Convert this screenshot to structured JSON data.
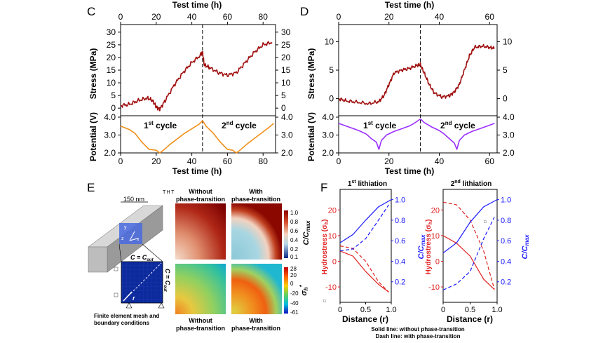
{
  "panel_c": {
    "letter": "C",
    "x_top": {
      "label": "Test time (h)",
      "ticks": [
        "0",
        "20",
        "40",
        "60",
        "80"
      ],
      "range": [
        0,
        87
      ]
    },
    "x_bottom": {
      "label": "Test time (h)",
      "ticks": [
        "0",
        "20",
        "40",
        "60",
        "80"
      ]
    },
    "stress_axis": {
      "label": "Stress (MPa)",
      "ticks": [
        "0",
        "5",
        "10",
        "15",
        "20",
        "25",
        "30"
      ],
      "range": [
        -3,
        33
      ]
    },
    "potential_axis": {
      "label": "Potential (V)",
      "ticks": [
        "2.0",
        "3.0",
        "4.0"
      ],
      "right_ticks": [
        "2.0",
        "3.0",
        "4.0"
      ],
      "range": [
        2.0,
        4.0
      ]
    },
    "cycle_divider_h": 46,
    "cycle1": {
      "main": "1",
      "sup": "st",
      "rest": " cycle"
    },
    "cycle2": {
      "main": "2",
      "sup": "nd",
      "rest": " cycle"
    },
    "stress_color": "#a01010",
    "potential_color": "#f0901a",
    "stress_curve": [
      [
        0,
        1
      ],
      [
        5,
        1.5
      ],
      [
        10,
        3
      ],
      [
        15,
        4
      ],
      [
        18,
        3
      ],
      [
        20,
        0.5
      ],
      [
        22,
        -0.5
      ],
      [
        25,
        3
      ],
      [
        30,
        9
      ],
      [
        35,
        14
      ],
      [
        40,
        18
      ],
      [
        45,
        21
      ],
      [
        46,
        22
      ],
      [
        47,
        17
      ],
      [
        50,
        16
      ],
      [
        55,
        14
      ],
      [
        60,
        13
      ],
      [
        65,
        14
      ],
      [
        70,
        18
      ],
      [
        75,
        22
      ],
      [
        80,
        25
      ],
      [
        85,
        26
      ]
    ],
    "potential_curve": [
      [
        0,
        3.5
      ],
      [
        5,
        3.3
      ],
      [
        8,
        3.1
      ],
      [
        12,
        2.6
      ],
      [
        16,
        2.2
      ],
      [
        20,
        2.15
      ],
      [
        22,
        2.0
      ],
      [
        24,
        2.15
      ],
      [
        28,
        2.5
      ],
      [
        32,
        2.8
      ],
      [
        36,
        3.1
      ],
      [
        40,
        3.35
      ],
      [
        44,
        3.6
      ],
      [
        46,
        3.8
      ],
      [
        48,
        3.5
      ],
      [
        52,
        3.1
      ],
      [
        56,
        2.6
      ],
      [
        60,
        2.2
      ],
      [
        63,
        2.15
      ],
      [
        65,
        2.0
      ],
      [
        67,
        2.15
      ],
      [
        71,
        2.5
      ],
      [
        75,
        2.8
      ],
      [
        79,
        3.1
      ],
      [
        83,
        3.4
      ],
      [
        86,
        3.65
      ]
    ]
  },
  "panel_d": {
    "letter": "D",
    "x_top": {
      "label": "Test time (h)",
      "ticks": [
        "0",
        "20",
        "40",
        "60"
      ],
      "range": [
        0,
        63
      ]
    },
    "x_bottom": {
      "label": "Test time (h)",
      "ticks": [
        "0",
        "20",
        "40",
        "60"
      ]
    },
    "stress_axis": {
      "label": "Stress (MPa)",
      "ticks": [
        "0",
        "5",
        "10"
      ],
      "right_ticks": [
        "0",
        "5",
        "10"
      ],
      "range": [
        -3,
        13
      ]
    },
    "potential_axis": {
      "label": "Potential (V)",
      "ticks": [
        "2.0",
        "3.0",
        "4.0"
      ],
      "right_ticks": [
        "2.0",
        "3.0",
        "4.0"
      ],
      "range": [
        2.0,
        4.0
      ]
    },
    "cycle_divider_h": 32.5,
    "cycle1": {
      "main": "1",
      "sup": "st",
      "rest": " cycle"
    },
    "cycle2": {
      "main": "2",
      "sup": "nd",
      "rest": " cycle"
    },
    "stress_color": "#a01010",
    "potential_color": "#9b30ff",
    "stress_curve": [
      [
        0,
        0
      ],
      [
        3,
        -0.4
      ],
      [
        7,
        -0.6
      ],
      [
        12,
        -0.9
      ],
      [
        16,
        -0.5
      ],
      [
        18,
        0.5
      ],
      [
        20,
        2.5
      ],
      [
        22,
        4.5
      ],
      [
        25,
        5
      ],
      [
        28,
        5.3
      ],
      [
        31,
        5.8
      ],
      [
        32.5,
        6
      ],
      [
        34,
        4.5
      ],
      [
        36,
        2.5
      ],
      [
        38,
        1
      ],
      [
        41,
        0.3
      ],
      [
        44,
        0.5
      ],
      [
        46,
        1.2
      ],
      [
        48,
        2.5
      ],
      [
        50,
        5
      ],
      [
        52,
        7.5
      ],
      [
        54,
        9
      ],
      [
        57,
        9.2
      ],
      [
        60,
        9
      ],
      [
        62,
        8.8
      ]
    ],
    "potential_curve": [
      [
        0,
        3.65
      ],
      [
        4,
        3.45
      ],
      [
        8,
        3.25
      ],
      [
        11,
        3.05
      ],
      [
        13,
        2.8
      ],
      [
        15,
        2.6
      ],
      [
        16,
        2.2
      ],
      [
        17,
        2.7
      ],
      [
        19,
        3.0
      ],
      [
        22,
        3.2
      ],
      [
        25,
        3.35
      ],
      [
        28,
        3.5
      ],
      [
        30,
        3.65
      ],
      [
        32.5,
        3.9
      ],
      [
        34,
        3.7
      ],
      [
        37,
        3.45
      ],
      [
        40,
        3.25
      ],
      [
        42,
        3.05
      ],
      [
        44,
        2.8
      ],
      [
        46,
        2.55
      ],
      [
        47,
        2.2
      ],
      [
        48,
        2.7
      ],
      [
        50,
        3.0
      ],
      [
        53,
        3.2
      ],
      [
        56,
        3.35
      ],
      [
        59,
        3.5
      ],
      [
        62,
        3.65
      ]
    ]
  },
  "panel_e": {
    "letter": "E",
    "scale_bar_text": "150 nm",
    "top_right_mark": "T H T",
    "axis_y": "y",
    "axis_x": "x",
    "axis_z": "z",
    "bc_top": "C = C",
    "bc_top_sub": "out",
    "bc_side": "C = C",
    "bc_side_sub": "out",
    "r_label": "r",
    "mesh_caption_1": "Finite element mesh and",
    "mesh_caption_2": "boundary conditions",
    "top_left_title_1": "Without",
    "top_left_title_2": "phase-transition",
    "top_right_title_1": "With",
    "top_right_title_2": "phase-transition",
    "bottom_left_title_1": "Without",
    "bottom_left_title_2": "phase-transition",
    "bottom_right_title_1": "With",
    "bottom_right_title_2": "phase-transition",
    "cbar1_ticks": [
      "1.0",
      "0.8",
      "0.6",
      "0.4",
      "0.2",
      "0.1"
    ],
    "cbar1_label_main": "C/C",
    "cbar1_label_sub": "max",
    "cbar2_ticks": [
      "28",
      "20",
      "0",
      "-20",
      "-40",
      "-61"
    ],
    "cbar2_label_main": "σ",
    "cbar2_label_sub": "h",
    "cbar2_label_sup": "*"
  },
  "panel_f": {
    "letter": "F",
    "left_title_main": "1",
    "left_title_sup": "st",
    "left_title_rest": " lithiation",
    "right_title_main": "2",
    "right_title_sup": "nd",
    "right_title_rest": " lithiation",
    "x_label": "Distance (r)",
    "x_ticks": [
      "0",
      "0.5",
      "1.0"
    ],
    "left_stress_ticks": [
      "-10",
      "0",
      "10",
      "20"
    ],
    "left_stress_range": [
      -16,
      28
    ],
    "right_stress_ticks": [
      "-10",
      "0",
      "10",
      "20"
    ],
    "right_stress_range": [
      -16,
      28
    ],
    "conc_ticks": [
      "0.2",
      "0.4",
      "0.6",
      "0.8",
      "1.0"
    ],
    "conc_range": [
      0.0,
      1.1
    ],
    "stress_label_main": "Hydrostress (σ",
    "stress_label_sub": "h",
    "stress_label_end": ")",
    "conc_label_main": "C/C",
    "conc_label_sub": "max",
    "stress_color": "#e02020",
    "conc_color": "#1a1aff",
    "stray_mark": "□",
    "legend_solid": "Solid line: without phase-transition",
    "legend_dash": "Dash line: with phase-transition",
    "left_curves": {
      "stress_solid": [
        [
          0,
          4
        ],
        [
          0.25,
          2
        ],
        [
          0.5,
          -4
        ],
        [
          0.75,
          -9
        ],
        [
          0.95,
          -12
        ]
      ],
      "stress_dash": [
        [
          0,
          6
        ],
        [
          0.25,
          5
        ],
        [
          0.5,
          0
        ],
        [
          0.75,
          -8
        ],
        [
          0.95,
          -12
        ]
      ],
      "conc_solid": [
        [
          0,
          0.58
        ],
        [
          0.25,
          0.66
        ],
        [
          0.5,
          0.8
        ],
        [
          0.75,
          0.93
        ],
        [
          1.0,
          1.0
        ]
      ],
      "conc_dash": [
        [
          0,
          0.5
        ],
        [
          0.25,
          0.52
        ],
        [
          0.5,
          0.62
        ],
        [
          0.75,
          0.8
        ],
        [
          0.95,
          0.95
        ]
      ]
    },
    "right_curves": {
      "stress_solid": [
        [
          0,
          10
        ],
        [
          0.25,
          7
        ],
        [
          0.5,
          2
        ],
        [
          0.75,
          -7
        ],
        [
          0.95,
          -11
        ]
      ],
      "stress_dash": [
        [
          0,
          23
        ],
        [
          0.25,
          22
        ],
        [
          0.5,
          16
        ],
        [
          0.75,
          4
        ],
        [
          0.95,
          -11
        ]
      ],
      "conc_solid": [
        [
          0,
          0.48
        ],
        [
          0.25,
          0.58
        ],
        [
          0.5,
          0.78
        ],
        [
          0.75,
          0.93
        ],
        [
          1.0,
          1.0
        ]
      ],
      "conc_dash": [
        [
          0,
          0.12
        ],
        [
          0.25,
          0.18
        ],
        [
          0.5,
          0.3
        ],
        [
          0.75,
          0.62
        ],
        [
          0.95,
          0.83
        ]
      ]
    }
  }
}
